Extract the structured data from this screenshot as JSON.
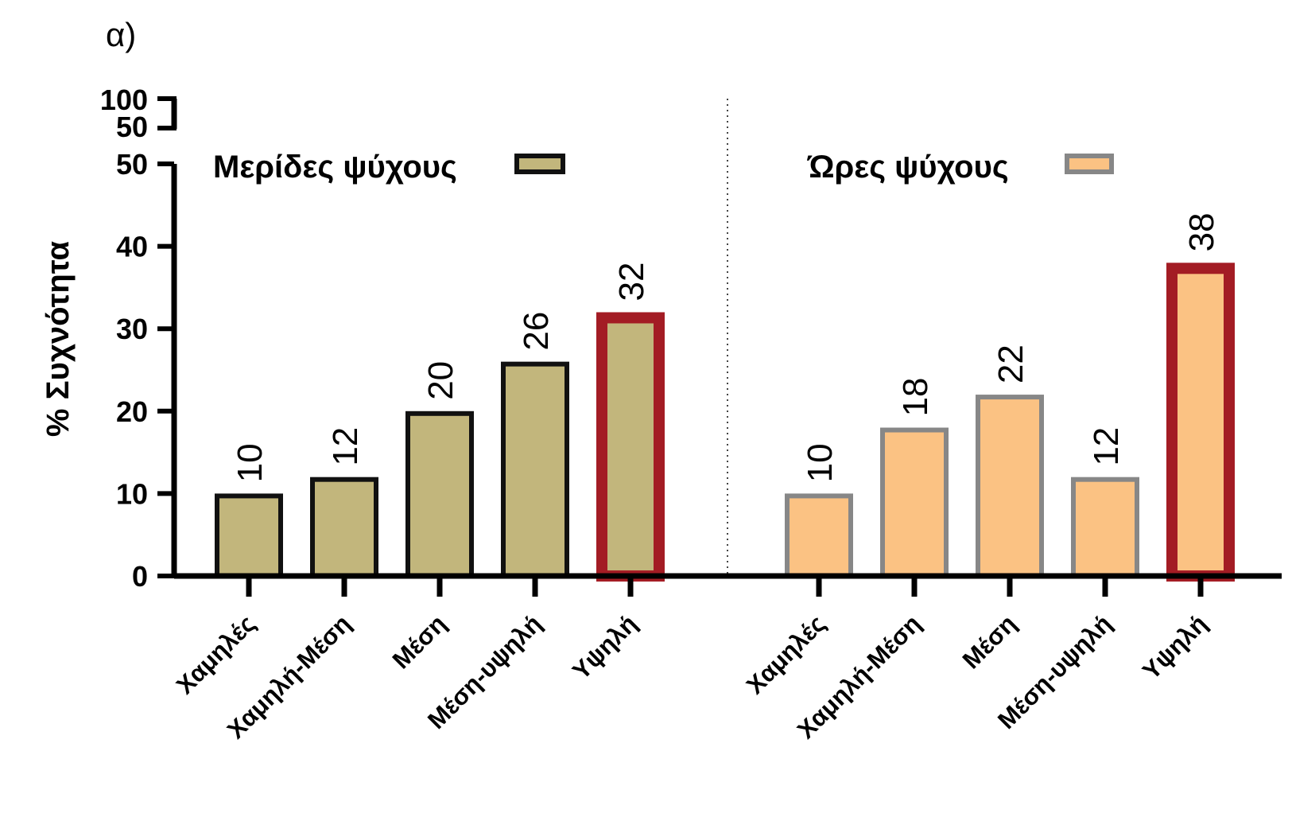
{
  "panel_label": "α)",
  "chart_data": {
    "type": "bar",
    "ylabel": "% Συχνότητα",
    "y_ticks": [
      "0",
      "10",
      "20",
      "30",
      "40",
      "50"
    ],
    "y_break_ticks": [
      "50",
      "100"
    ],
    "ylim": [
      0,
      50
    ],
    "y_break": [
      50,
      100
    ],
    "categories": [
      "Χαμηλές",
      "Χαμηλή-Μέση",
      "Μέση",
      "Μέση-υψηλή",
      "Υψηλή"
    ],
    "series": [
      {
        "name": "Μερίδες ψύχους",
        "values": [
          10,
          12,
          20,
          26,
          32
        ],
        "labels": [
          "10",
          "12",
          "20",
          "26",
          "32"
        ],
        "fill": "#c2b67c",
        "stroke": "#111111",
        "highlight_index": 4,
        "highlight_stroke": "#a31c24"
      },
      {
        "name": "Ώρες ψύχους",
        "values": [
          10,
          18,
          22,
          12,
          38
        ],
        "labels": [
          "10",
          "18",
          "22",
          "12",
          "38"
        ],
        "fill": "#fbc283",
        "stroke": "#878787",
        "highlight_index": 4,
        "highlight_stroke": "#a31c24"
      }
    ],
    "legend_placement": "top",
    "grid": false,
    "divider_style": "dotted"
  }
}
